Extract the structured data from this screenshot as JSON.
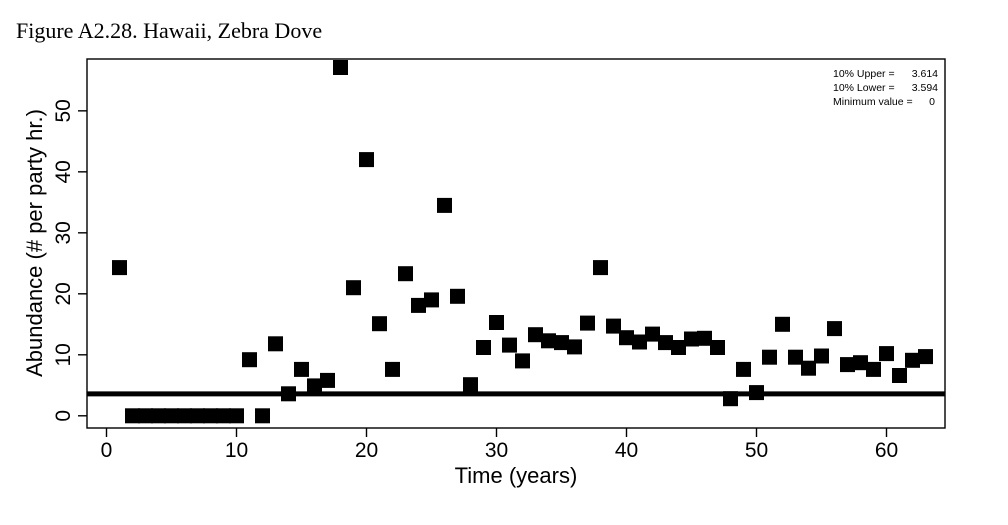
{
  "figure_title": "Figure A2.28. Hawaii, Zebra Dove",
  "chart_data": {
    "type": "scatter",
    "xlabel": "Time (years)",
    "ylabel": "Abundance (# per party hr.)",
    "xlim": [
      -1.5,
      64.5
    ],
    "ylim": [
      -2,
      58.5
    ],
    "xticks": [
      0,
      10,
      20,
      30,
      40,
      50,
      60
    ],
    "yticks": [
      0,
      10,
      20,
      30,
      40,
      50
    ],
    "marker": "square",
    "marker_color": "#000000",
    "grid": false,
    "threshold_line": 3.6,
    "annotations": [
      {
        "label": "10% Upper =",
        "value": "3.614"
      },
      {
        "label": "10% Lower =",
        "value": "3.594"
      },
      {
        "label": "Minimum value =",
        "value": "0"
      }
    ],
    "annotation_placement": "top-right",
    "points": [
      [
        1,
        24.3
      ],
      [
        2,
        0
      ],
      [
        3,
        0
      ],
      [
        4,
        0
      ],
      [
        5,
        0
      ],
      [
        6,
        0
      ],
      [
        7,
        0
      ],
      [
        8,
        0
      ],
      [
        9,
        0
      ],
      [
        10,
        0
      ],
      [
        11,
        9.2
      ],
      [
        12,
        0
      ],
      [
        13,
        11.8
      ],
      [
        14,
        3.6
      ],
      [
        15,
        7.6
      ],
      [
        16,
        4.9
      ],
      [
        17,
        5.8
      ],
      [
        18,
        57.1
      ],
      [
        19,
        21
      ],
      [
        20,
        42
      ],
      [
        21,
        15.1
      ],
      [
        22,
        7.6
      ],
      [
        23,
        23.3
      ],
      [
        24,
        18.1
      ],
      [
        25,
        19
      ],
      [
        26,
        34.5
      ],
      [
        27,
        19.6
      ],
      [
        28,
        5.1
      ],
      [
        29,
        11.2
      ],
      [
        30,
        15.3
      ],
      [
        31,
        11.6
      ],
      [
        32,
        9
      ],
      [
        33,
        13.3
      ],
      [
        34,
        12.3
      ],
      [
        35,
        12
      ],
      [
        36,
        11.3
      ],
      [
        37,
        15.2
      ],
      [
        38,
        24.3
      ],
      [
        39,
        14.7
      ],
      [
        40,
        12.8
      ],
      [
        41,
        12.1
      ],
      [
        42,
        13.4
      ],
      [
        43,
        12
      ],
      [
        44,
        11.2
      ],
      [
        45,
        12.6
      ],
      [
        46,
        12.7
      ],
      [
        47,
        11.2
      ],
      [
        48,
        2.8
      ],
      [
        49,
        7.6
      ],
      [
        50,
        3.8
      ],
      [
        51,
        9.6
      ],
      [
        52,
        15
      ],
      [
        53,
        9.6
      ],
      [
        54,
        7.8
      ],
      [
        55,
        9.8
      ],
      [
        56,
        14.3
      ],
      [
        57,
        8.4
      ],
      [
        58,
        8.7
      ],
      [
        59,
        7.6
      ],
      [
        60,
        10.2
      ],
      [
        61,
        6.6
      ],
      [
        62,
        9.1
      ],
      [
        63,
        9.7
      ]
    ]
  }
}
